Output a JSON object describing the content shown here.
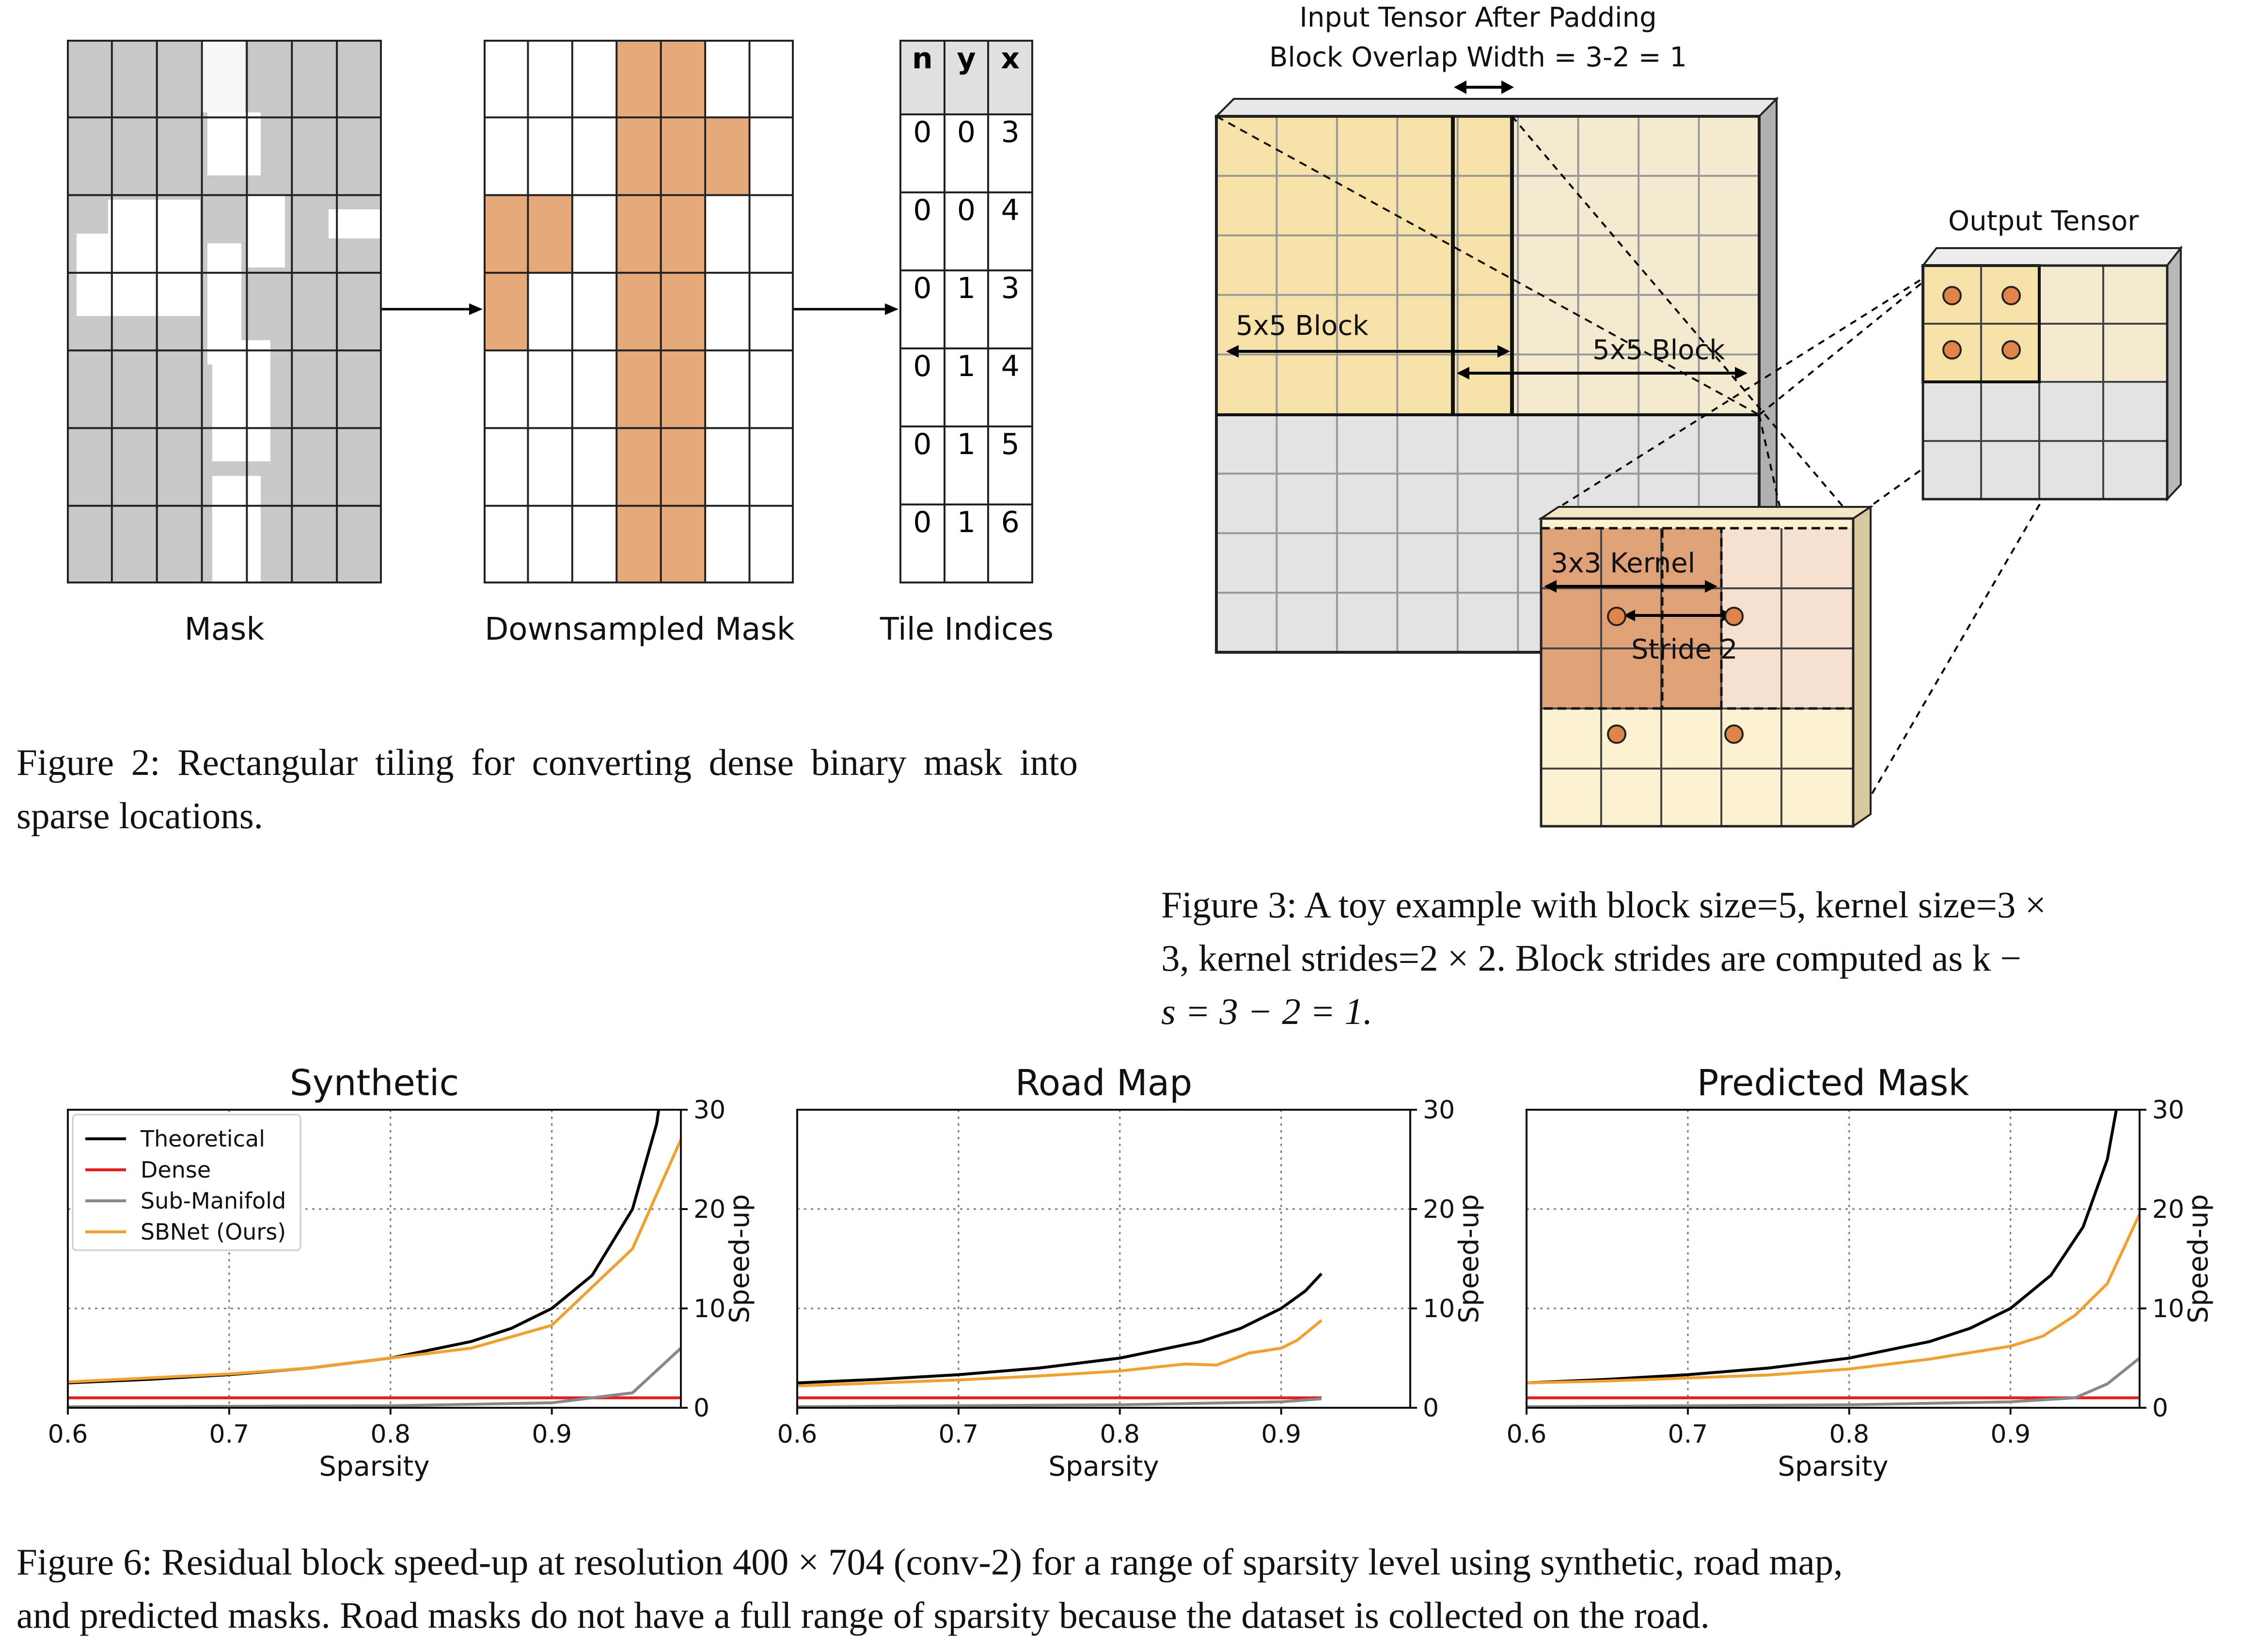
{
  "figure2": {
    "labels": {
      "mask": "Mask",
      "downsampled": "Downsampled Mask",
      "tiles": "Tile Indices"
    },
    "table_headers": [
      "n",
      "y",
      "x"
    ],
    "table_rows": [
      [
        "0",
        "0",
        "3"
      ],
      [
        "0",
        "0",
        "4"
      ],
      [
        "0",
        "1",
        "3"
      ],
      [
        "0",
        "1",
        "4"
      ],
      [
        "0",
        "1",
        "5"
      ],
      [
        "0",
        "1",
        "6"
      ]
    ],
    "active_tiles": [
      [
        0,
        3
      ],
      [
        0,
        4
      ],
      [
        1,
        3
      ],
      [
        1,
        4
      ],
      [
        1,
        5
      ],
      [
        2,
        0
      ],
      [
        2,
        1
      ],
      [
        2,
        3
      ],
      [
        2,
        4
      ],
      [
        3,
        0
      ],
      [
        3,
        3
      ],
      [
        3,
        4
      ],
      [
        4,
        3
      ],
      [
        4,
        4
      ],
      [
        5,
        3
      ],
      [
        5,
        4
      ],
      [
        6,
        3
      ],
      [
        6,
        4
      ]
    ],
    "caption": "Figure 2: Rectangular tiling for converting dense binary mask into sparse locations.",
    "colors": {
      "active": "#e8a97a",
      "mask_gray": "#c8c8c8"
    }
  },
  "figure3": {
    "title_line1": "Input Tensor After Padding",
    "title_line2": "Block Overlap Width = 3-2 = 1",
    "block_label_1": "5x5 Block",
    "block_label_2": "5x5 Block",
    "output_label": "Output Tensor",
    "kernel_label": "3x3 Kernel",
    "stride_label": "Stride 2",
    "caption_line1": "Figure 3: A toy example with block size=5, kernel size=3 ×",
    "caption_line2": "3, kernel strides=2 × 2. Block strides are computed as k −",
    "caption_line3": "s = 3 − 2 = 1.",
    "colors": {
      "block_yellow": "#f6e1a8",
      "block_light": "#f4ead0",
      "grid_gray": "#e3e3e3",
      "kernel_orange": "#e1a178",
      "dot": "#e0844a"
    }
  },
  "figure6": {
    "caption_line1": "Figure 6: Residual block speed-up at resolution 400 × 704 (conv-2) for a range of sparsity level using synthetic, road map,",
    "caption_line2": "and predicted masks. Road masks do not have a full range of sparsity because the dataset is collected on the road."
  },
  "chart_data": [
    {
      "type": "line",
      "title": "Synthetic",
      "xlabel": "Sparsity",
      "ylabel": "Speed-up",
      "xlim": [
        0.6,
        0.98
      ],
      "ylim": [
        0,
        30
      ],
      "xticks": [
        "0.6",
        "0.7",
        "0.8",
        "0.9"
      ],
      "yticks": [
        "0",
        "10",
        "20",
        "30"
      ],
      "grid": true,
      "legend": "top-left",
      "series": [
        {
          "name": "Theoretical",
          "color": "#000000",
          "x": [
            0.6,
            0.65,
            0.7,
            0.75,
            0.8,
            0.85,
            0.875,
            0.9,
            0.925,
            0.95,
            0.965,
            0.975
          ],
          "y": [
            2.5,
            2.86,
            3.33,
            4.0,
            5.0,
            6.67,
            8.0,
            10.0,
            13.33,
            20.0,
            28.6,
            40.0
          ]
        },
        {
          "name": "Dense",
          "color": "#e02020",
          "x": [
            0.6,
            0.98
          ],
          "y": [
            1.0,
            1.0
          ]
        },
        {
          "name": "Sub-Manifold",
          "color": "#888888",
          "x": [
            0.6,
            0.7,
            0.8,
            0.9,
            0.95,
            0.98
          ],
          "y": [
            0.1,
            0.15,
            0.2,
            0.5,
            1.5,
            6.0
          ]
        },
        {
          "name": "SBNet (Ours)",
          "color": "#f0a030",
          "x": [
            0.6,
            0.65,
            0.7,
            0.75,
            0.8,
            0.85,
            0.9,
            0.95,
            0.98
          ],
          "y": [
            2.6,
            3.0,
            3.4,
            4.0,
            5.0,
            6.0,
            8.3,
            16.0,
            27.0
          ]
        }
      ]
    },
    {
      "type": "line",
      "title": "Road Map",
      "xlabel": "Sparsity",
      "ylabel": "Speed-up",
      "xlim": [
        0.6,
        0.98
      ],
      "ylim": [
        0,
        30
      ],
      "xticks": [
        "0.6",
        "0.7",
        "0.8",
        "0.9"
      ],
      "yticks": [
        "0",
        "10",
        "20",
        "30"
      ],
      "grid": true,
      "series": [
        {
          "name": "Theoretical",
          "color": "#000000",
          "x": [
            0.6,
            0.65,
            0.7,
            0.75,
            0.8,
            0.85,
            0.875,
            0.9,
            0.915,
            0.925
          ],
          "y": [
            2.5,
            2.86,
            3.33,
            4.0,
            5.0,
            6.67,
            8.0,
            10.0,
            11.76,
            13.5
          ]
        },
        {
          "name": "Dense",
          "color": "#e02020",
          "x": [
            0.6,
            0.925
          ],
          "y": [
            1.0,
            1.0
          ]
        },
        {
          "name": "Sub-Manifold",
          "color": "#888888",
          "x": [
            0.6,
            0.8,
            0.9,
            0.925
          ],
          "y": [
            0.1,
            0.3,
            0.6,
            0.9
          ]
        },
        {
          "name": "SBNet (Ours)",
          "color": "#f0a030",
          "x": [
            0.6,
            0.65,
            0.7,
            0.75,
            0.8,
            0.84,
            0.86,
            0.88,
            0.9,
            0.91,
            0.925
          ],
          "y": [
            2.2,
            2.5,
            2.8,
            3.2,
            3.7,
            4.4,
            4.3,
            5.5,
            6.0,
            6.8,
            8.8
          ]
        }
      ]
    },
    {
      "type": "line",
      "title": "Predicted Mask",
      "xlabel": "Sparsity",
      "ylabel": "Speed-up",
      "xlim": [
        0.6,
        0.98
      ],
      "ylim": [
        0,
        30
      ],
      "xticks": [
        "0.6",
        "0.7",
        "0.8",
        "0.9"
      ],
      "yticks": [
        "0",
        "10",
        "20",
        "30"
      ],
      "grid": true,
      "series": [
        {
          "name": "Theoretical",
          "color": "#000000",
          "x": [
            0.6,
            0.65,
            0.7,
            0.75,
            0.8,
            0.85,
            0.875,
            0.9,
            0.925,
            0.945,
            0.96,
            0.972
          ],
          "y": [
            2.5,
            2.86,
            3.33,
            4.0,
            5.0,
            6.67,
            8.0,
            10.0,
            13.33,
            18.2,
            25.0,
            35.7
          ]
        },
        {
          "name": "Dense",
          "color": "#e02020",
          "x": [
            0.6,
            0.98
          ],
          "y": [
            1.0,
            1.0
          ]
        },
        {
          "name": "Sub-Manifold",
          "color": "#888888",
          "x": [
            0.6,
            0.8,
            0.9,
            0.94,
            0.96,
            0.98
          ],
          "y": [
            0.1,
            0.3,
            0.6,
            1.0,
            2.4,
            5.0
          ]
        },
        {
          "name": "SBNet (Ours)",
          "color": "#f0a030",
          "x": [
            0.6,
            0.65,
            0.7,
            0.75,
            0.8,
            0.85,
            0.9,
            0.92,
            0.94,
            0.96,
            0.98
          ],
          "y": [
            2.5,
            2.7,
            3.0,
            3.3,
            3.9,
            4.9,
            6.2,
            7.2,
            9.3,
            12.5,
            19.5
          ]
        }
      ]
    }
  ]
}
